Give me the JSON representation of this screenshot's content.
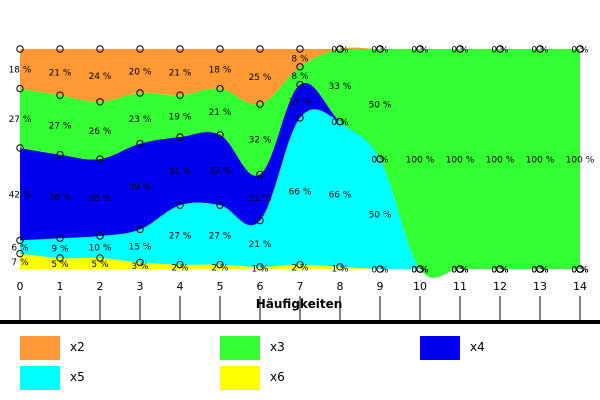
{
  "chart_data": {
    "type": "area",
    "stacked_percent": true,
    "xlabel": "Häufigkeiten",
    "ylabel": "",
    "x": [
      0,
      1,
      2,
      3,
      4,
      5,
      6,
      7,
      8,
      9,
      10,
      11,
      12,
      13,
      14
    ],
    "ylim": [
      0,
      100
    ],
    "grid": false,
    "legend_position": "bottom",
    "series": [
      {
        "name": "x6",
        "color": "#ffff00",
        "values": [
          7,
          5,
          5,
          3,
          2,
          2,
          1,
          2,
          1,
          0,
          0,
          0,
          0,
          0,
          0
        ],
        "labels": [
          "7 %",
          "5 %",
          "5 %",
          "3 %",
          "2 %",
          "2 %",
          "1 %",
          "2 %",
          "1 %",
          "0 %",
          "0 %",
          "0 %",
          "0 %",
          "0 %",
          "0 %"
        ]
      },
      {
        "name": "x5",
        "color": "#00ffff",
        "values": [
          6,
          9,
          10,
          15,
          27,
          27,
          21,
          66,
          66,
          50,
          0,
          0,
          0,
          0,
          0
        ],
        "labels": [
          "6 %",
          "9 %",
          "10 %",
          "15 %",
          "27 %",
          "27 %",
          "21 %",
          "66 %",
          "66 %",
          "50 %",
          "0 %",
          "0 %",
          "0 %",
          "0 %",
          "0 %"
        ]
      },
      {
        "name": "x4",
        "color": "#0000ee",
        "values": [
          42,
          38,
          35,
          39,
          31,
          32,
          21,
          15,
          0,
          0,
          0,
          0,
          0,
          0,
          0
        ],
        "labels": [
          "42 %",
          "38 %",
          "35 %",
          "39 %",
          "31 %",
          "32 %",
          "21 %",
          "15 %",
          "0 %",
          "0 %",
          "0 %",
          "0 %",
          "0 %",
          "0 %",
          "0 %"
        ]
      },
      {
        "name": "x3",
        "color": "#33ff33",
        "values": [
          27,
          27,
          26,
          23,
          19,
          21,
          32,
          8,
          33,
          50,
          100,
          100,
          100,
          100,
          100
        ],
        "labels": [
          "27 %",
          "27 %",
          "26 %",
          "23 %",
          "19 %",
          "21 %",
          "32 %",
          "8 %",
          "33 %",
          "50 %",
          "100 %",
          "100 %",
          "100 %",
          "100 %",
          "100 %"
        ]
      },
      {
        "name": "x2",
        "color": "#ff9933",
        "values": [
          18,
          21,
          24,
          20,
          21,
          18,
          25,
          8,
          0,
          0,
          0,
          0,
          0,
          0,
          0
        ],
        "labels": [
          "18 %",
          "21 %",
          "24 %",
          "20 %",
          "21 %",
          "18 %",
          "25 %",
          "8 %",
          "0 %",
          "0 %",
          "0 %",
          "0 %",
          "0 %",
          "0 %",
          "0 %"
        ]
      }
    ],
    "legend": [
      {
        "name": "x2",
        "color": "#ff9933"
      },
      {
        "name": "x3",
        "color": "#33ff33"
      },
      {
        "name": "x4",
        "color": "#0000ee"
      },
      {
        "name": "x5",
        "color": "#00ffff"
      },
      {
        "name": "x6",
        "color": "#ffff00"
      }
    ]
  }
}
